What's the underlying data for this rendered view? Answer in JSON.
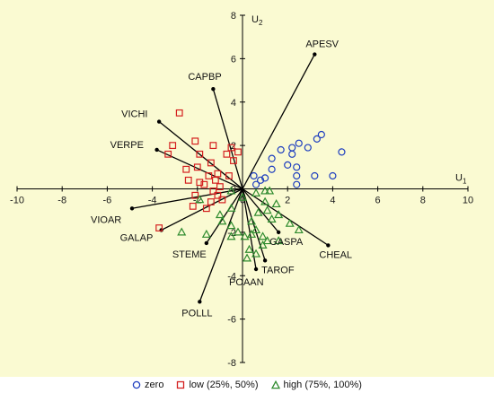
{
  "chart_data": {
    "type": "scatter",
    "background": "#fafad2",
    "xlabel_main": "U",
    "xlabel_sub": "1",
    "ylabel_main": "U",
    "ylabel_sub": "2",
    "xlim": [
      -10,
      10
    ],
    "ylim": [
      -8,
      8
    ],
    "xticks": [
      "-10",
      "-8",
      "-6",
      "-4",
      "-2",
      "0",
      "2",
      "4",
      "6",
      "8",
      "10"
    ],
    "yticks": [
      "8",
      "6",
      "4",
      "2",
      "0",
      "-2",
      "-4",
      "-6",
      "-8"
    ],
    "vectors": [
      {
        "label": "APESV",
        "x": 3.2,
        "y": 6.2
      },
      {
        "label": "CAPBP",
        "x": -1.3,
        "y": 4.6
      },
      {
        "label": "VICHI",
        "x": -3.7,
        "y": 3.1
      },
      {
        "label": "VERPE",
        "x": -3.8,
        "y": 1.8
      },
      {
        "label": "VIOAR",
        "x": -4.9,
        "y": -0.9
      },
      {
        "label": "GALAP",
        "x": -3.6,
        "y": -1.9
      },
      {
        "label": "STEME",
        "x": -1.6,
        "y": -2.5
      },
      {
        "label": "POLLL",
        "x": -1.9,
        "y": -5.2
      },
      {
        "label": "POAAN",
        "x": 0.6,
        "y": -3.7
      },
      {
        "label": "TAROF",
        "x": 1.0,
        "y": -3.3
      },
      {
        "label": "GASPA",
        "x": 1.6,
        "y": -2.0
      },
      {
        "label": "CHEAL",
        "x": 3.8,
        "y": -2.6
      }
    ],
    "series": [
      {
        "name": "zero",
        "color": "#1f3fbf",
        "marker": "circle",
        "points": [
          [
            1.7,
            1.8
          ],
          [
            2.2,
            1.9
          ],
          [
            2.5,
            2.1
          ],
          [
            2.2,
            1.6
          ],
          [
            2.9,
            1.9
          ],
          [
            3.3,
            2.3
          ],
          [
            3.5,
            2.5
          ],
          [
            4.4,
            1.7
          ],
          [
            2.4,
            1.0
          ],
          [
            2.0,
            1.1
          ],
          [
            1.3,
            0.9
          ],
          [
            3.2,
            0.6
          ],
          [
            2.4,
            0.6
          ],
          [
            4.0,
            0.6
          ],
          [
            1.0,
            0.5
          ],
          [
            0.5,
            0.6
          ],
          [
            0.6,
            0.2
          ],
          [
            1.3,
            1.4
          ],
          [
            0.8,
            0.4
          ],
          [
            2.4,
            0.2
          ]
        ]
      },
      {
        "name": "low (25%, 50%)",
        "color": "#d42020",
        "marker": "square",
        "points": [
          [
            -2.8,
            3.5
          ],
          [
            -3.1,
            2.0
          ],
          [
            -2.1,
            2.2
          ],
          [
            -1.9,
            1.6
          ],
          [
            -1.3,
            2.0
          ],
          [
            -1.4,
            1.2
          ],
          [
            -2.0,
            1.0
          ],
          [
            -2.5,
            0.9
          ],
          [
            -3.3,
            1.6
          ],
          [
            -1.5,
            0.6
          ],
          [
            -1.9,
            0.3
          ],
          [
            -2.4,
            0.4
          ],
          [
            -1.2,
            0.4
          ],
          [
            -1.0,
            0.1
          ],
          [
            -1.3,
            -0.1
          ],
          [
            -2.1,
            -0.3
          ],
          [
            -2.2,
            -0.8
          ],
          [
            -1.6,
            -0.9
          ],
          [
            -3.7,
            -1.8
          ],
          [
            -1.1,
            0.7
          ],
          [
            -0.7,
            1.6
          ],
          [
            -0.4,
            1.3
          ],
          [
            -0.6,
            0.6
          ],
          [
            -0.9,
            -0.5
          ],
          [
            -1.4,
            -0.6
          ],
          [
            -0.5,
            1.9
          ],
          [
            -0.2,
            1.7
          ],
          [
            -1.7,
            0.2
          ],
          [
            -1.1,
            -0.3
          ]
        ]
      },
      {
        "name": "high (75%, 100%)",
        "color": "#2e8b2e",
        "marker": "triangle",
        "points": [
          [
            -2.7,
            -2.0
          ],
          [
            -0.5,
            -0.1
          ],
          [
            0.0,
            -0.4
          ],
          [
            -0.5,
            -0.9
          ],
          [
            -1.0,
            -1.2
          ],
          [
            -0.9,
            -1.5
          ],
          [
            -0.5,
            -1.7
          ],
          [
            -0.5,
            -2.2
          ],
          [
            0.6,
            -0.2
          ],
          [
            1.0,
            -0.6
          ],
          [
            1.5,
            -0.7
          ],
          [
            1.2,
            -0.1
          ],
          [
            1.1,
            -1.0
          ],
          [
            1.6,
            -1.2
          ],
          [
            2.1,
            -1.6
          ],
          [
            1.3,
            -1.4
          ],
          [
            0.7,
            -1.1
          ],
          [
            0.4,
            -1.5
          ],
          [
            0.6,
            -1.9
          ],
          [
            0.4,
            -2.1
          ],
          [
            0.9,
            -2.2
          ],
          [
            1.1,
            -2.4
          ],
          [
            0.9,
            -2.6
          ],
          [
            0.1,
            -2.2
          ],
          [
            -0.2,
            -2.0
          ],
          [
            0.3,
            -2.8
          ],
          [
            0.2,
            -3.2
          ],
          [
            0.6,
            -3.0
          ],
          [
            2.5,
            -1.9
          ],
          [
            -1.9,
            -0.5
          ],
          [
            -1.6,
            -2.1
          ],
          [
            1.6,
            -2.4
          ],
          [
            1.0,
            -0.1
          ]
        ]
      }
    ]
  }
}
